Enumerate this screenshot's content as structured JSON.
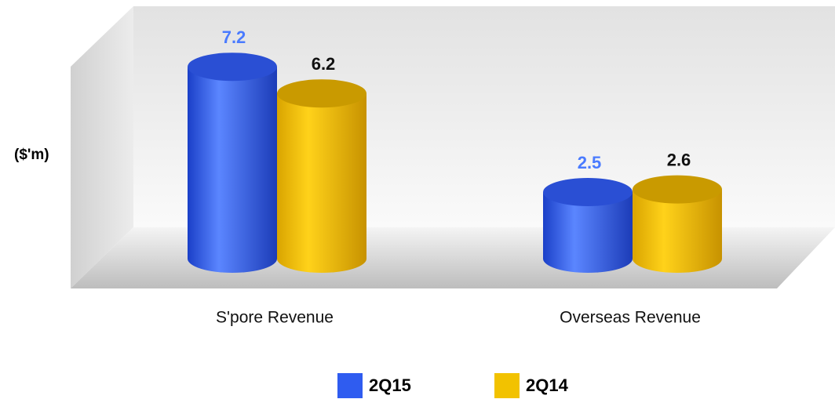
{
  "chart_data": {
    "type": "bar3d",
    "ylabel": "($'m)",
    "categories": [
      "S'pore Revenue",
      "Overseas Revenue"
    ],
    "series": [
      {
        "name": "2Q15",
        "color": "#2f5cf0",
        "values": [
          7.2,
          2.5
        ]
      },
      {
        "name": "2Q14",
        "color": "#f2c200",
        "values": [
          6.2,
          2.6
        ]
      }
    ],
    "ylim": [
      0,
      8
    ]
  }
}
